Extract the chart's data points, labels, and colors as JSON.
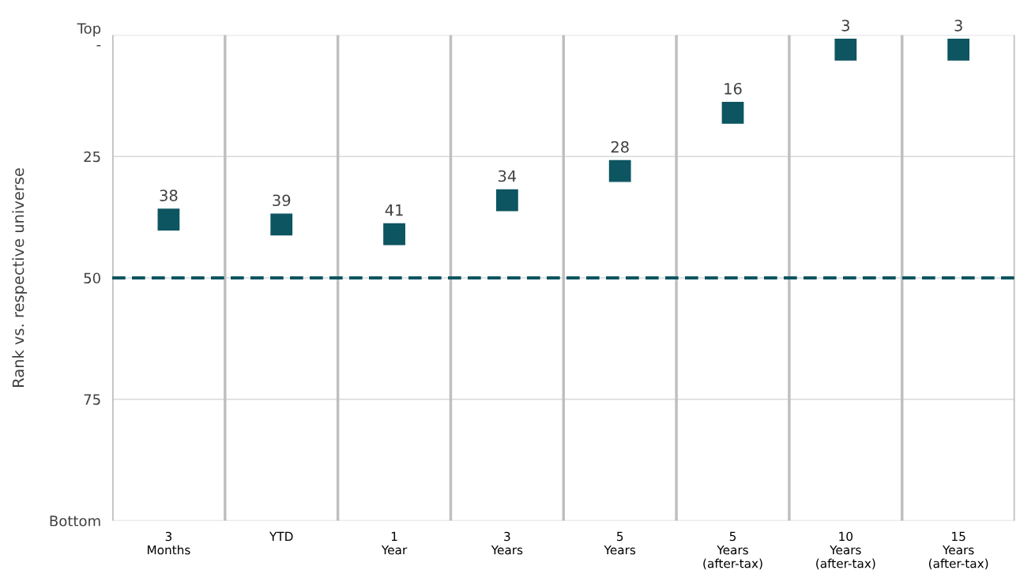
{
  "chart_data": {
    "type": "scatter",
    "ylabel": "Rank vs. respective universe",
    "categories": [
      "3\nMonths",
      "YTD",
      "1\nYear",
      "3\nYears",
      "5\nYears",
      "5\nYears\n(after-tax)",
      "10\nYears\n(after-tax)",
      "15\nYears\n(after-tax)"
    ],
    "values": [
      38,
      39,
      41,
      34,
      28,
      16,
      3,
      3
    ],
    "color": "#0d5560",
    "marker": "square",
    "data_labels": true,
    "ylim": [
      100,
      0
    ],
    "yticks": [
      {
        "value": 0,
        "label": "Top\n-"
      },
      25,
      50,
      75,
      {
        "value": 100,
        "label": "Bottom"
      }
    ],
    "grid": true,
    "ref_lines": [
      {
        "axis": "y",
        "value": 50,
        "color": "#0d5560",
        "line_style": "dashed"
      }
    ]
  }
}
